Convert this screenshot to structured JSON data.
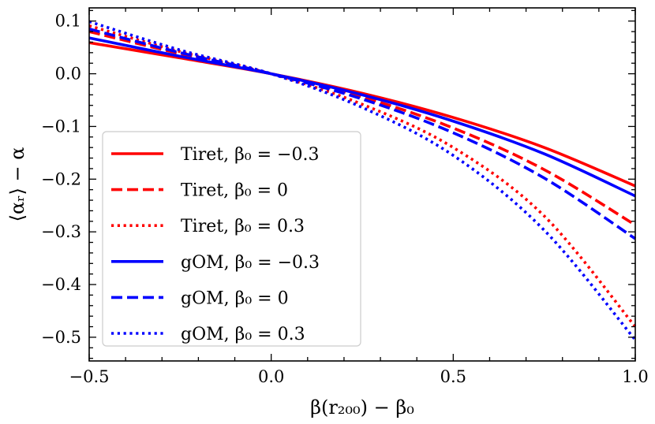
{
  "chart_data": {
    "type": "line",
    "title": "",
    "xlabel": "β(r₂₀₀) − β₀",
    "ylabel": "⟨αᵣ⟩ − α",
    "xlim": [
      -0.5,
      1.0
    ],
    "ylim": [
      -0.545,
      0.125
    ],
    "xticks": [
      -0.5,
      0.0,
      0.5,
      1.0
    ],
    "xtick_labels": [
      "−0.5",
      "0.0",
      "0.5",
      "1.0"
    ],
    "yticks": [
      0.1,
      0.0,
      -0.1,
      -0.2,
      -0.3,
      -0.4,
      -0.5
    ],
    "ytick_labels": [
      "0.1",
      "0.0",
      "−0.1",
      "−0.2",
      "−0.3",
      "−0.4",
      "−0.5"
    ],
    "grid": false,
    "legend_position": "lower-left",
    "x": [
      -0.5,
      -0.25,
      0.0,
      0.25,
      0.5,
      0.75,
      1.0
    ],
    "series": [
      {
        "name": "Tiret, β₀ = −0.3",
        "color": "#ff0000",
        "style": "solid",
        "values": [
          0.059,
          0.03,
          0.0,
          -0.037,
          -0.083,
          -0.14,
          -0.213
        ]
      },
      {
        "name": "Tiret, β₀ = 0",
        "color": "#ff0000",
        "style": "dashed",
        "values": [
          0.08,
          0.038,
          0.0,
          -0.044,
          -0.103,
          -0.182,
          -0.287
        ]
      },
      {
        "name": "Tiret, β₀ = 0.3",
        "color": "#ff0000",
        "style": "dotted",
        "values": [
          0.091,
          0.042,
          0.0,
          -0.058,
          -0.14,
          -0.27,
          -0.48
        ]
      },
      {
        "name": "gOM, β₀ = −0.3",
        "color": "#0000ff",
        "style": "solid",
        "values": [
          0.068,
          0.033,
          0.0,
          -0.04,
          -0.09,
          -0.152,
          -0.232
        ]
      },
      {
        "name": "gOM, β₀ = 0",
        "color": "#0000ff",
        "style": "dashed",
        "values": [
          0.085,
          0.04,
          0.0,
          -0.048,
          -0.112,
          -0.198,
          -0.313
        ]
      },
      {
        "name": "gOM, β₀ = 0.3",
        "color": "#0000ff",
        "style": "dotted",
        "values": [
          0.099,
          0.045,
          0.0,
          -0.064,
          -0.155,
          -0.297,
          -0.505
        ]
      }
    ]
  }
}
